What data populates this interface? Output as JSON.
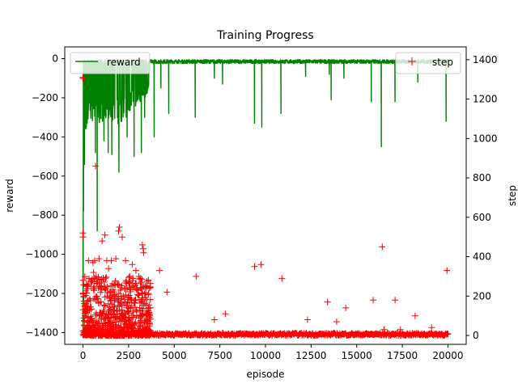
{
  "chart_data": {
    "type": "line",
    "title": "Training Progress",
    "xlabel": "episode",
    "ylabel": "reward",
    "y2label": "step",
    "xlim": [
      -1000,
      21000
    ],
    "ylim": [
      -1460,
      60
    ],
    "y2lim": [
      -45,
      1465
    ],
    "xticks": [
      0,
      2500,
      5000,
      7500,
      10000,
      12500,
      15000,
      17500,
      20000
    ],
    "yticks": [
      0,
      -200,
      -400,
      -600,
      -800,
      -1000,
      -1200,
      -1400
    ],
    "y2ticks": [
      0,
      200,
      400,
      600,
      800,
      1000,
      1200,
      1400
    ],
    "grid": false,
    "series": [
      {
        "name": "reward",
        "axis": "left",
        "style": "line",
        "color": "#008000",
        "dense_band": {
          "x_range": [
            0,
            20000
          ],
          "values": [
            -25,
            -5
          ]
        },
        "early_noise_x_range": [
          0,
          3600
        ],
        "min_envelope": [
          [
            0,
            -1400
          ],
          [
            100,
            -450
          ],
          [
            300,
            -310
          ],
          [
            600,
            -320
          ],
          [
            900,
            -350
          ],
          [
            1200,
            -300
          ],
          [
            1500,
            -320
          ],
          [
            1800,
            -340
          ],
          [
            2100,
            -330
          ],
          [
            2400,
            -300
          ],
          [
            2700,
            -250
          ],
          [
            3000,
            -240
          ],
          [
            3300,
            -220
          ],
          [
            3600,
            -160
          ],
          [
            3700,
            -60
          ]
        ],
        "spikes": [
          [
            0,
            -1400
          ],
          [
            80,
            -540
          ],
          [
            680,
            -480
          ],
          [
            780,
            -880
          ],
          [
            1150,
            -420
          ],
          [
            1380,
            -480
          ],
          [
            1580,
            -490
          ],
          [
            1970,
            -580
          ],
          [
            2420,
            -400
          ],
          [
            2800,
            -500
          ],
          [
            3200,
            -480
          ],
          [
            3380,
            -300
          ],
          [
            3900,
            -400
          ],
          [
            4270,
            -150
          ],
          [
            4700,
            -280
          ],
          [
            6150,
            -300
          ],
          [
            7200,
            -100
          ],
          [
            7650,
            -130
          ],
          [
            9400,
            -330
          ],
          [
            9800,
            -350
          ],
          [
            10850,
            -280
          ],
          [
            12200,
            -90
          ],
          [
            13500,
            -80
          ],
          [
            13600,
            -210
          ],
          [
            14300,
            -100
          ],
          [
            15800,
            -220
          ],
          [
            16350,
            -450
          ],
          [
            17100,
            -220
          ],
          [
            18350,
            -120
          ],
          [
            19900,
            -320
          ]
        ]
      },
      {
        "name": "step",
        "axis": "right",
        "style": "marker",
        "marker": "+",
        "color": "#ff0000",
        "baseline": {
          "x_range": [
            0,
            20000
          ],
          "values": [
            0,
            12
          ]
        },
        "early_cloud": {
          "x_range": [
            0,
            3700
          ],
          "values": [
            0,
            300
          ]
        },
        "points": [
          [
            0,
            1310
          ],
          [
            0,
            1305
          ],
          [
            0,
            520
          ],
          [
            0,
            500
          ],
          [
            300,
            380
          ],
          [
            550,
            370
          ],
          [
            580,
            320
          ],
          [
            640,
            380
          ],
          [
            690,
            860
          ],
          [
            880,
            390
          ],
          [
            1050,
            480
          ],
          [
            1200,
            510
          ],
          [
            1300,
            380
          ],
          [
            1400,
            340
          ],
          [
            1550,
            380
          ],
          [
            1800,
            390
          ],
          [
            1950,
            530
          ],
          [
            2000,
            550
          ],
          [
            2150,
            500
          ],
          [
            2330,
            380
          ],
          [
            2560,
            300
          ],
          [
            2700,
            360
          ],
          [
            2900,
            330
          ],
          [
            3150,
            290
          ],
          [
            3250,
            460
          ],
          [
            3300,
            440
          ],
          [
            3320,
            420
          ],
          [
            3500,
            250
          ],
          [
            4200,
            330
          ],
          [
            4600,
            220
          ],
          [
            6200,
            300
          ],
          [
            7200,
            80
          ],
          [
            7800,
            110
          ],
          [
            9400,
            350
          ],
          [
            9750,
            360
          ],
          [
            10900,
            290
          ],
          [
            12300,
            80
          ],
          [
            13400,
            170
          ],
          [
            13900,
            70
          ],
          [
            14400,
            140
          ],
          [
            15900,
            180
          ],
          [
            16400,
            450
          ],
          [
            16500,
            30
          ],
          [
            17100,
            180
          ],
          [
            17400,
            30
          ],
          [
            18200,
            100
          ],
          [
            19100,
            40
          ],
          [
            19950,
            330
          ]
        ]
      }
    ],
    "legend": [
      {
        "label": "reward",
        "position": "upper-left"
      },
      {
        "label": "step",
        "position": "upper-right"
      }
    ]
  }
}
